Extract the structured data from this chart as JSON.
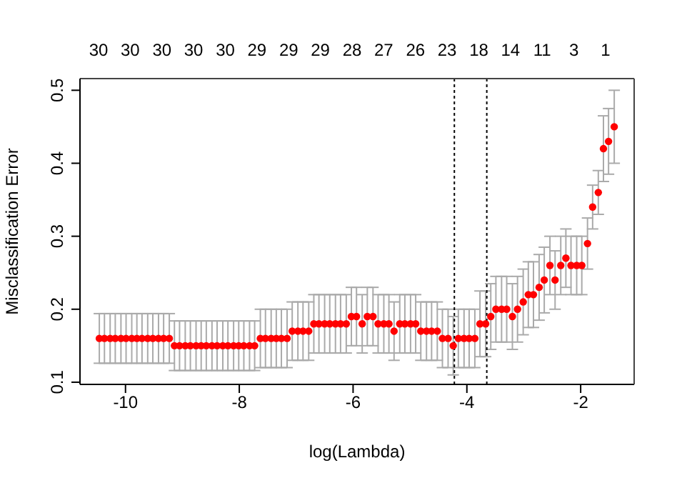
{
  "chart_data": {
    "type": "scatter",
    "xlabel": "log(Lambda)",
    "ylabel": "Misclassification Error",
    "x": [
      -10.46,
      -10.37,
      -10.27,
      -10.18,
      -10.08,
      -9.99,
      -9.89,
      -9.8,
      -9.71,
      -9.61,
      -9.52,
      -9.42,
      -9.33,
      -9.23,
      -9.14,
      -9.05,
      -8.95,
      -8.86,
      -8.76,
      -8.67,
      -8.58,
      -8.48,
      -8.39,
      -8.29,
      -8.2,
      -8.1,
      -8.01,
      -7.92,
      -7.82,
      -7.73,
      -7.63,
      -7.54,
      -7.44,
      -7.35,
      -7.26,
      -7.16,
      -7.07,
      -6.97,
      -6.88,
      -6.78,
      -6.69,
      -6.6,
      -6.5,
      -6.41,
      -6.31,
      -6.22,
      -6.12,
      -6.03,
      -5.94,
      -5.84,
      -5.75,
      -5.65,
      -5.56,
      -5.46,
      -5.37,
      -5.28,
      -5.18,
      -5.09,
      -4.99,
      -4.9,
      -4.81,
      -4.71,
      -4.62,
      -4.52,
      -4.43,
      -4.33,
      -4.24,
      -4.15,
      -4.05,
      -3.96,
      -3.86,
      -3.77,
      -3.67,
      -3.58,
      -3.49,
      -3.39,
      -3.3,
      -3.2,
      -3.11,
      -3.01,
      -2.92,
      -2.83,
      -2.73,
      -2.64,
      -2.54,
      -2.45,
      -2.35,
      -2.26,
      -2.17,
      -2.07,
      -1.98,
      -1.88,
      -1.79,
      -1.69,
      -1.6,
      -1.51,
      -1.41
    ],
    "series": [
      {
        "color": "#ff0000",
        "values": [
          0.16,
          0.16,
          0.16,
          0.16,
          0.16,
          0.16,
          0.16,
          0.16,
          0.16,
          0.16,
          0.16,
          0.16,
          0.16,
          0.16,
          0.15,
          0.15,
          0.15,
          0.15,
          0.15,
          0.15,
          0.15,
          0.15,
          0.15,
          0.15,
          0.15,
          0.15,
          0.15,
          0.15,
          0.15,
          0.15,
          0.16,
          0.16,
          0.16,
          0.16,
          0.16,
          0.16,
          0.17,
          0.17,
          0.17,
          0.17,
          0.18,
          0.18,
          0.18,
          0.18,
          0.18,
          0.18,
          0.18,
          0.19,
          0.19,
          0.18,
          0.19,
          0.19,
          0.18,
          0.18,
          0.18,
          0.17,
          0.18,
          0.18,
          0.18,
          0.18,
          0.17,
          0.17,
          0.17,
          0.17,
          0.16,
          0.16,
          0.15,
          0.16,
          0.16,
          0.16,
          0.16,
          0.18,
          0.18,
          0.19,
          0.2,
          0.2,
          0.2,
          0.19,
          0.2,
          0.21,
          0.22,
          0.22,
          0.23,
          0.24,
          0.26,
          0.24,
          0.26,
          0.27,
          0.26,
          0.26,
          0.26,
          0.29,
          0.34,
          0.36,
          0.42,
          0.43,
          0.45
        ],
        "errors": [
          0.034,
          0.034,
          0.034,
          0.034,
          0.034,
          0.034,
          0.034,
          0.034,
          0.034,
          0.034,
          0.034,
          0.034,
          0.034,
          0.034,
          0.034,
          0.034,
          0.034,
          0.034,
          0.034,
          0.034,
          0.034,
          0.034,
          0.034,
          0.034,
          0.034,
          0.034,
          0.034,
          0.034,
          0.034,
          0.034,
          0.04,
          0.04,
          0.04,
          0.04,
          0.04,
          0.04,
          0.04,
          0.04,
          0.04,
          0.04,
          0.04,
          0.04,
          0.04,
          0.04,
          0.04,
          0.04,
          0.04,
          0.04,
          0.04,
          0.04,
          0.04,
          0.04,
          0.04,
          0.04,
          0.04,
          0.04,
          0.04,
          0.04,
          0.04,
          0.04,
          0.04,
          0.04,
          0.04,
          0.04,
          0.04,
          0.04,
          0.04,
          0.04,
          0.04,
          0.04,
          0.04,
          0.045,
          0.045,
          0.045,
          0.045,
          0.045,
          0.045,
          0.045,
          0.045,
          0.045,
          0.045,
          0.045,
          0.045,
          0.045,
          0.04,
          0.04,
          0.04,
          0.04,
          0.04,
          0.04,
          0.04,
          0.035,
          0.03,
          0.03,
          0.045,
          0.045,
          0.05
        ]
      }
    ],
    "xlim": [
      -10.8,
      -1.06
    ],
    "xticks": [
      -10,
      -8,
      -6,
      -4,
      -2
    ],
    "ylim": [
      0.097,
      0.516
    ],
    "yticks": [
      0.1,
      0.2,
      0.3,
      0.4,
      0.5
    ],
    "annotations": [
      "30",
      "30",
      "30",
      "30",
      "30",
      "29",
      "29",
      "29",
      "28",
      "27",
      "26",
      "23",
      "18",
      "14",
      "11",
      "3",
      "1"
    ],
    "ref_lines": [
      {
        "axis": "x",
        "value": -4.22,
        "line_style": "dotted",
        "color": "#000000"
      },
      {
        "axis": "x",
        "value": -3.65,
        "line_style": "dotted",
        "color": "#000000"
      }
    ],
    "grid": false,
    "legend": false,
    "marker": "circle"
  }
}
